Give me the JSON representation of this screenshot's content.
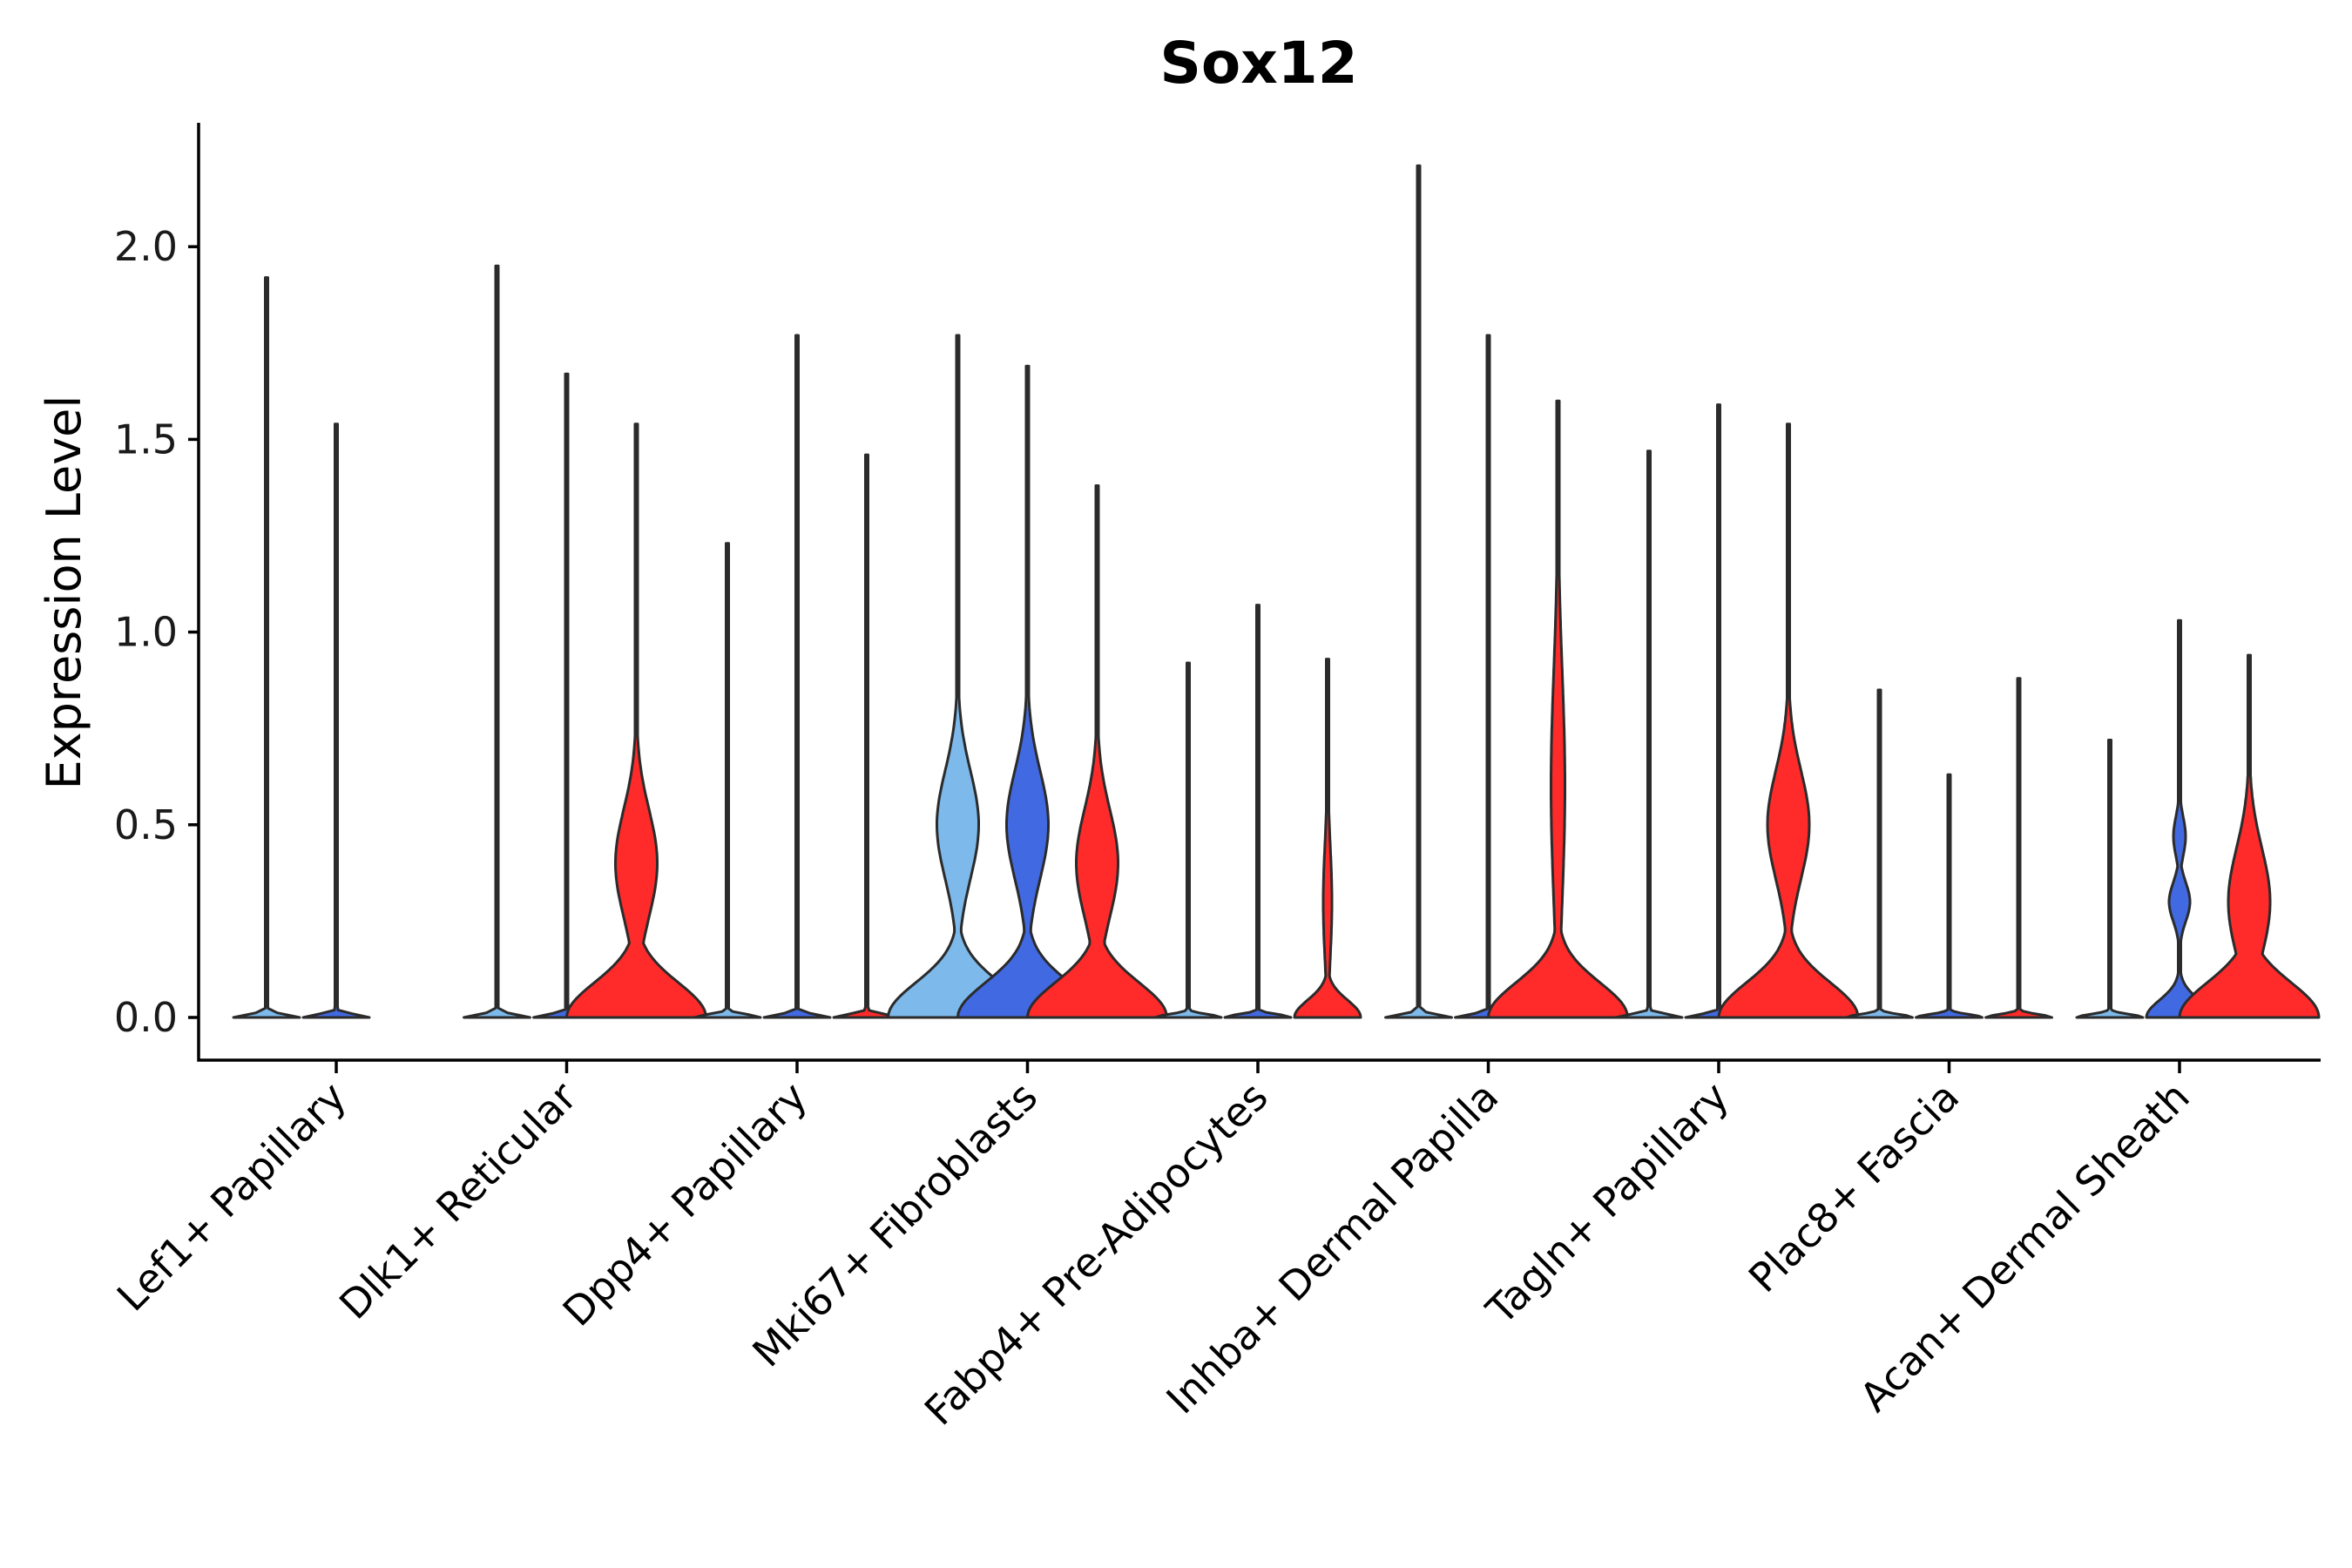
{
  "chart_data": {
    "type": "violin",
    "title": "Sox12",
    "ylabel": "Expression Level",
    "xlabel": "",
    "ylim": [
      -0.11,
      2.32
    ],
    "yticks": [
      0.0,
      0.5,
      1.0,
      1.5,
      2.0
    ],
    "ytick_labels": [
      "0.0",
      "0.5",
      "1.0",
      "1.5",
      "2.0"
    ],
    "grid": false,
    "legend": "none",
    "series_colors": {
      "light-blue": "#7db9ea",
      "blue": "#4169e1",
      "red": "#ff2a2a"
    },
    "categories": [
      "Lef1+ Papillary",
      "Dlk1+ Reticular",
      "Dpp4+ Papillary",
      "Mki67+ Fibroblasts",
      "Fabp4+ Pre-Adipocytes",
      "Inhba+ Dermal Papilla",
      "Tagln+ Papillary",
      "Plac8+ Fascia",
      "Acan+ Dermal Sheath"
    ],
    "groups": [
      {
        "category": "Lef1+ Papillary",
        "violins": [
          {
            "color": "light-blue",
            "max": 1.92,
            "shape": "flat"
          },
          {
            "color": "blue",
            "max": 1.54,
            "shape": "flat"
          }
        ]
      },
      {
        "category": "Dlk1+ Reticular",
        "violins": [
          {
            "color": "light-blue",
            "max": 1.95,
            "shape": "flat"
          },
          {
            "color": "blue",
            "max": 1.67,
            "shape": "flat"
          },
          {
            "color": "red",
            "max": 1.54,
            "shape": "broad-base-mode-0.4"
          }
        ]
      },
      {
        "category": "Dpp4+ Papillary",
        "violins": [
          {
            "color": "light-blue",
            "max": 1.23,
            "shape": "flat"
          },
          {
            "color": "blue",
            "max": 1.77,
            "shape": "flat"
          },
          {
            "color": "red",
            "max": 1.46,
            "shape": "flat"
          }
        ]
      },
      {
        "category": "Mki67+ Fibroblasts",
        "violins": [
          {
            "color": "light-blue",
            "max": 1.77,
            "shape": "broad-base-mode-0.5"
          },
          {
            "color": "blue",
            "max": 1.69,
            "shape": "broad-base-mode-0.5"
          },
          {
            "color": "red",
            "max": 1.38,
            "shape": "broad-base-mode-0.4"
          }
        ]
      },
      {
        "category": "Fabp4+ Pre-Adipocytes",
        "violins": [
          {
            "color": "light-blue",
            "max": 0.92,
            "shape": "flat"
          },
          {
            "color": "blue",
            "max": 1.07,
            "shape": "flat"
          },
          {
            "color": "red",
            "max": 0.93,
            "shape": "low-base"
          }
        ]
      },
      {
        "category": "Inhba+ Dermal Papilla",
        "violins": [
          {
            "color": "light-blue",
            "max": 2.21,
            "shape": "flat"
          },
          {
            "color": "blue",
            "max": 1.77,
            "shape": "flat"
          },
          {
            "color": "red",
            "max": 1.6,
            "shape": "broad-base"
          }
        ]
      },
      {
        "category": "Tagln+ Papillary",
        "violins": [
          {
            "color": "light-blue",
            "max": 1.47,
            "shape": "flat"
          },
          {
            "color": "blue",
            "max": 1.59,
            "shape": "flat"
          },
          {
            "color": "red",
            "max": 1.54,
            "shape": "broad-base-mode-0.5"
          }
        ]
      },
      {
        "category": "Plac8+ Fascia",
        "violins": [
          {
            "color": "light-blue",
            "max": 0.85,
            "shape": "flat"
          },
          {
            "color": "blue",
            "max": 0.63,
            "shape": "flat"
          },
          {
            "color": "red",
            "max": 0.88,
            "shape": "flat"
          }
        ]
      },
      {
        "category": "Acan+ Dermal Sheath",
        "violins": [
          {
            "color": "light-blue",
            "max": 0.72,
            "shape": "flat"
          },
          {
            "color": "blue",
            "max": 1.03,
            "shape": "low-base-mode-0.3"
          },
          {
            "color": "red",
            "max": 0.94,
            "shape": "broad-base-mode-0.3"
          }
        ]
      }
    ]
  }
}
